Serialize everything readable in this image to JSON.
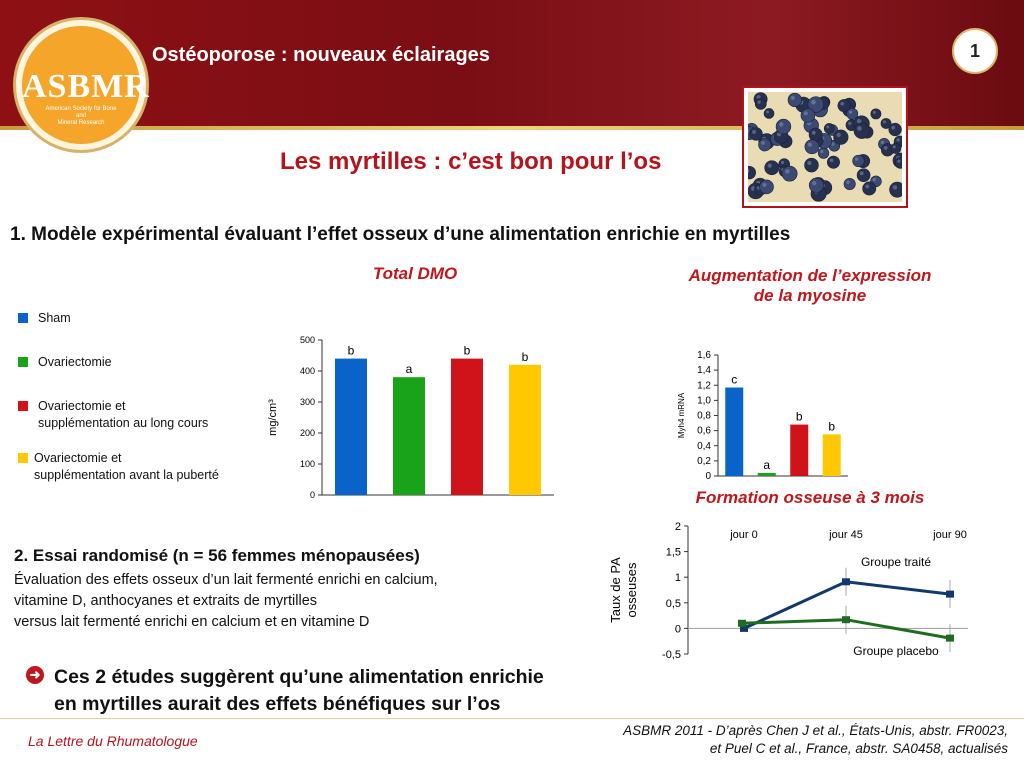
{
  "header": {
    "title": "Ostéoporose : nouveaux éclairages",
    "page_number": "1",
    "logo": {
      "text": "ASBMR",
      "subtitle_line1": "American Society for Bone",
      "subtitle_line2": "and",
      "subtitle_line3": "Mineral Research"
    }
  },
  "slide_title": "Les myrtilles : c’est bon pour l’os",
  "section1_title": "1. Modèle expérimental évaluant l’effet osseux d’une alimentation enrichie en myrtilles",
  "legend": [
    {
      "label_line1": "Sham",
      "label_line2": "",
      "color": "#0a63c9"
    },
    {
      "label_line1": "Ovariectomie",
      "label_line2": "",
      "color": "#19a319"
    },
    {
      "label_line1": "Ovariectomie et",
      "label_line2": "supplémentation au long cours",
      "color": "#d0121b"
    },
    {
      "label_line1": "Ovariectomie et",
      "label_line2": "supplémentation avant la puberté",
      "color": "#ffc800"
    }
  ],
  "chart_titles": {
    "dmo": "Total DMO",
    "myosin_line1": "Augmentation de l’expression",
    "myosin_line2": "de la myosine",
    "formation": "Formation osseuse à 3 mois"
  },
  "chart_data": [
    {
      "type": "bar",
      "title": "Total DMO",
      "ylabel": "mg/cm³",
      "ylim": [
        0,
        500
      ],
      "yticks": [
        "0",
        "100",
        "200",
        "300",
        "400",
        "500"
      ],
      "categories": [
        "Sham",
        "Ovariectomie",
        "Ovariectomie et supplémentation au long cours",
        "Ovariectomie et supplémentation avant la puberté"
      ],
      "values": [
        440,
        380,
        440,
        420
      ],
      "bar_labels": [
        "b",
        "a",
        "b",
        "b"
      ],
      "colors": [
        "#0a63c9",
        "#19a319",
        "#d0121b",
        "#ffc800"
      ]
    },
    {
      "type": "bar",
      "title": "Augmentation de l’expression de la myosine",
      "ylabel": "Myh4 mRNA",
      "ylim": [
        0,
        1.6
      ],
      "yticks": [
        "0",
        "0,2",
        "0,4",
        "0,6",
        "0,8",
        "1,0",
        "1,2",
        "1,4",
        "1,6"
      ],
      "categories": [
        "Sham",
        "Ovariectomie",
        "Ovariectomie et supplémentation au long cours",
        "Ovariectomie et supplémentation avant la puberté"
      ],
      "values": [
        1.17,
        0.04,
        0.68,
        0.55
      ],
      "bar_labels": [
        "c",
        "a",
        "b",
        "b"
      ],
      "colors": [
        "#0a63c9",
        "#19a319",
        "#d0121b",
        "#ffc800"
      ]
    },
    {
      "type": "line",
      "title": "Formation osseuse à 3 mois",
      "ylabel_line1": "Taux de PA",
      "ylabel_line2": "osseuses",
      "ylim": [
        -0.5,
        2
      ],
      "yticks": [
        "-0,5",
        "0",
        "0,5",
        "1",
        "1,5",
        "2"
      ],
      "x": [
        "jour 0",
        "jour 45",
        "jour 90"
      ],
      "series": [
        {
          "name": "Groupe traité",
          "values": [
            0.0,
            0.91,
            0.67
          ],
          "color": "#0f3a6b"
        },
        {
          "name": "Groupe placebo",
          "values": [
            0.1,
            0.17,
            -0.19
          ],
          "color": "#1f6b1f"
        }
      ]
    }
  ],
  "section2": {
    "title": "2. Essai randomisé (n = 56 femmes ménopausées)",
    "line1": "Évaluation des effets osseux d’un lait fermenté enrichi en calcium,",
    "line2": "vitamine D, anthocyanes et extraits de myrtilles",
    "line3": "versus lait fermenté enrichi en calcium et en vitamine D"
  },
  "conclusion": {
    "line1": "Ces 2 études suggèrent qu’une alimentation enrichie",
    "line2": "en myrtilles aurait des effets bénéfiques sur l’os"
  },
  "footer": {
    "left": "La Lettre du Rhumatologue",
    "right_line1": "ASBMR 2011 - D’après Chen J et al., États-Unis, abstr. FR0023,",
    "right_line2": "et Puel C et al., France, abstr. SA0458, actualisés"
  }
}
